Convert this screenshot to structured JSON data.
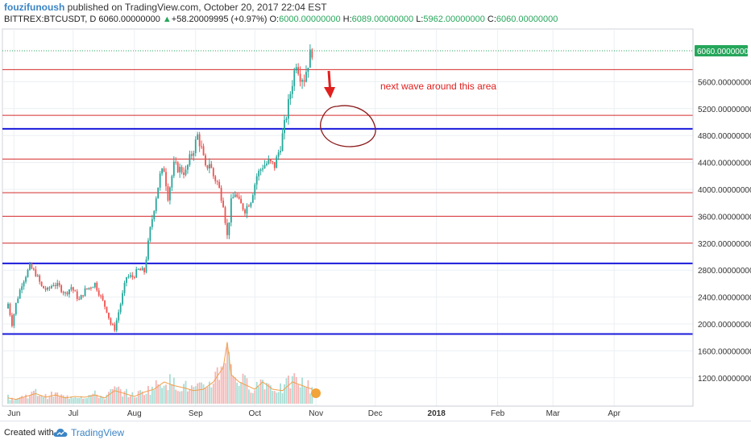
{
  "header": {
    "author": "fouzifunoush",
    "published": "published on TradingView.com, October 20, 2017 22:04 EST",
    "symbol": "BITTREX:BTCUSDT, D",
    "price": "6060.00000000",
    "change": "+58.20009995 (+0.97%)",
    "open_label": "O:",
    "open": "6000.00000000",
    "high_label": "H:",
    "high": "6089.00000000",
    "low_label": "L:",
    "low": "5962.00000000",
    "close_label": "C:",
    "close": "6060.00000000"
  },
  "footer": {
    "created_with": "Created with",
    "brand": "TradingView"
  },
  "annotation": {
    "text": "next wave around this area"
  },
  "colors": {
    "up": "#26a69a",
    "down": "#ef5350",
    "red_level": "#d42b2b",
    "blue_level": "#1a1adb",
    "annotation": "#e0201e",
    "circle": "#8b1a1a",
    "ma": "#f0a04b",
    "price_tag": "#26a65b"
  },
  "chart_data": {
    "type": "candlestick",
    "title": "",
    "xlabel": "",
    "ylabel": "",
    "ylim": [
      900,
      6450
    ],
    "y_ticks": [
      "1200.00000000",
      "1600.00000000",
      "2000.00000000",
      "2400.00000000",
      "2800.00000000",
      "3200.00000000",
      "3600.00000000",
      "4000.00000000",
      "4400.00000000",
      "4800.00000000",
      "5200.00000000",
      "5600.00000000"
    ],
    "y_tick_values": [
      1200,
      1600,
      2000,
      2400,
      2800,
      3200,
      3600,
      4000,
      4400,
      4800,
      5200,
      5600
    ],
    "x_ticks": [
      "Jun",
      "Jul",
      "Aug",
      "Sep",
      "Oct",
      "Nov",
      "Dec",
      "2018",
      "Feb",
      "Mar",
      "Apr"
    ],
    "x_tick_days": [
      4,
      34,
      65,
      96,
      126,
      157,
      187,
      218,
      249,
      277,
      308
    ],
    "last_price_label": "6060.00000000",
    "last_price": 6060,
    "horizontal_levels": [
      {
        "value": 5780,
        "color": "red"
      },
      {
        "value": 5100,
        "color": "red"
      },
      {
        "value": 4900,
        "color": "blue"
      },
      {
        "value": 4450,
        "color": "red"
      },
      {
        "value": 3950,
        "color": "red"
      },
      {
        "value": 3600,
        "color": "red"
      },
      {
        "value": 3200,
        "color": "red"
      },
      {
        "value": 2900,
        "color": "blue"
      },
      {
        "value": 1850,
        "color": "blue"
      }
    ],
    "anchors": [
      [
        1,
        2300
      ],
      [
        3,
        2000
      ],
      [
        5,
        2300
      ],
      [
        8,
        2600
      ],
      [
        12,
        2850
      ],
      [
        15,
        2750
      ],
      [
        18,
        2550
      ],
      [
        21,
        2500
      ],
      [
        24,
        2600
      ],
      [
        27,
        2550
      ],
      [
        30,
        2450
      ],
      [
        33,
        2550
      ],
      [
        37,
        2350
      ],
      [
        40,
        2500
      ],
      [
        45,
        2600
      ],
      [
        48,
        2400
      ],
      [
        51,
        2200
      ],
      [
        53,
        2000
      ],
      [
        55,
        1930
      ],
      [
        58,
        2300
      ],
      [
        61,
        2700
      ],
      [
        64,
        2700
      ],
      [
        67,
        2800
      ],
      [
        70,
        2780
      ],
      [
        73,
        3400
      ],
      [
        76,
        3900
      ],
      [
        78,
        4200
      ],
      [
        80,
        4300
      ],
      [
        82,
        3900
      ],
      [
        85,
        4350
      ],
      [
        88,
        4300
      ],
      [
        91,
        4250
      ],
      [
        93,
        4450
      ],
      [
        95,
        4600
      ],
      [
        97,
        4800
      ],
      [
        99,
        4600
      ],
      [
        101,
        4300
      ],
      [
        103,
        4400
      ],
      [
        105,
        4200
      ],
      [
        107,
        4100
      ],
      [
        110,
        3800
      ],
      [
        112,
        3300
      ],
      [
        114,
        3800
      ],
      [
        116,
        3950
      ],
      [
        118,
        3800
      ],
      [
        121,
        3700
      ],
      [
        124,
        3850
      ],
      [
        127,
        4200
      ],
      [
        130,
        4350
      ],
      [
        133,
        4400
      ],
      [
        136,
        4350
      ],
      [
        139,
        4650
      ],
      [
        142,
        5100
      ],
      [
        145,
        5600
      ],
      [
        147,
        5900
      ],
      [
        149,
        5700
      ],
      [
        151,
        5650
      ],
      [
        154,
        6000
      ],
      [
        155,
        6060
      ]
    ],
    "volume_anchors": [
      [
        1,
        8
      ],
      [
        5,
        6
      ],
      [
        10,
        10
      ],
      [
        15,
        14
      ],
      [
        20,
        9
      ],
      [
        25,
        12
      ],
      [
        30,
        8
      ],
      [
        35,
        10
      ],
      [
        40,
        9
      ],
      [
        45,
        12
      ],
      [
        50,
        8
      ],
      [
        55,
        18
      ],
      [
        60,
        14
      ],
      [
        65,
        10
      ],
      [
        70,
        16
      ],
      [
        75,
        20
      ],
      [
        80,
        30
      ],
      [
        85,
        25
      ],
      [
        90,
        22
      ],
      [
        95,
        18
      ],
      [
        100,
        20
      ],
      [
        105,
        30
      ],
      [
        110,
        50
      ],
      [
        112,
        85
      ],
      [
        114,
        40
      ],
      [
        118,
        30
      ],
      [
        122,
        25
      ],
      [
        126,
        20
      ],
      [
        130,
        30
      ],
      [
        135,
        20
      ],
      [
        140,
        18
      ],
      [
        145,
        30
      ],
      [
        150,
        25
      ],
      [
        155,
        20
      ]
    ]
  }
}
